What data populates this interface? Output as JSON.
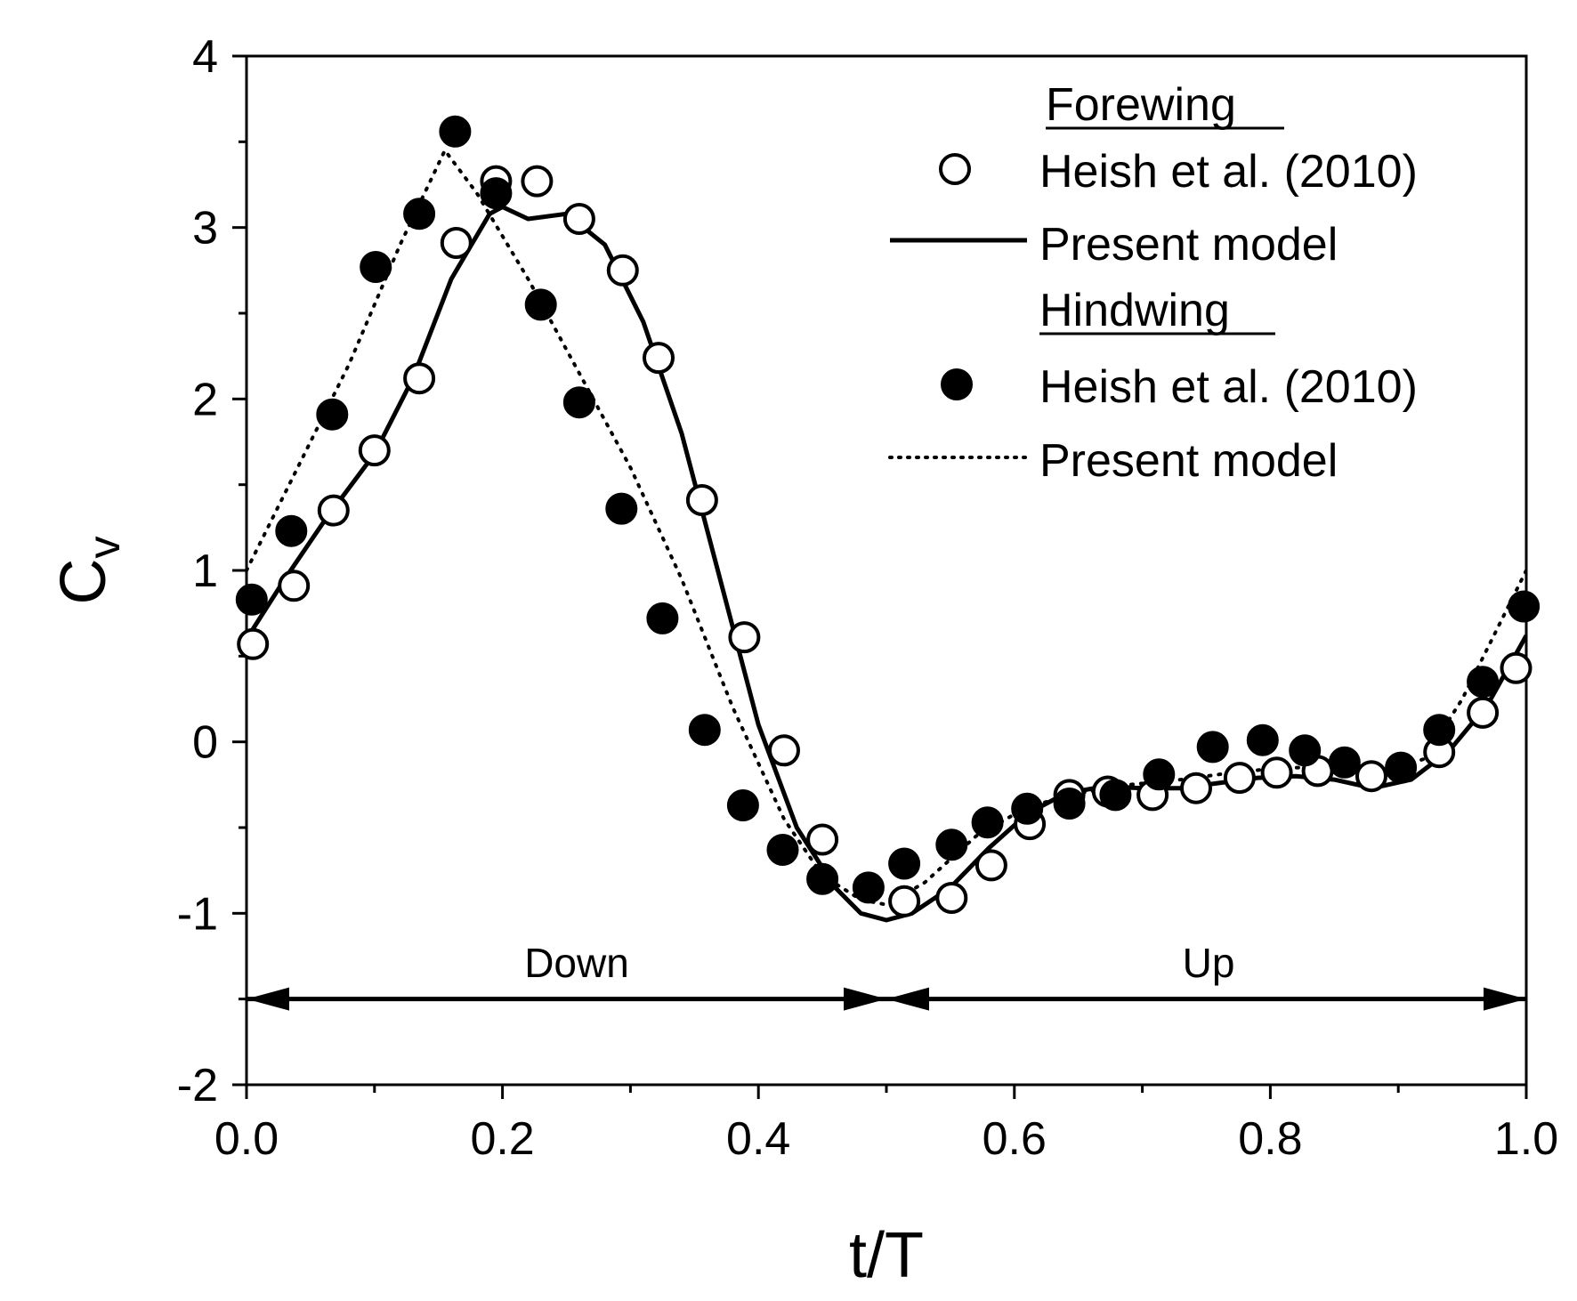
{
  "chart_data": {
    "type": "line",
    "title": "",
    "xlabel": "t/T",
    "ylabel": "C",
    "ylabel_subscript": "v",
    "xlim": [
      0.0,
      1.0
    ],
    "ylim": [
      -2,
      4
    ],
    "x_ticks": [
      "0.0",
      "0.2",
      "0.4",
      "0.6",
      "0.8",
      "1.0"
    ],
    "x_tick_values": [
      0.0,
      0.2,
      0.4,
      0.6,
      0.8,
      1.0
    ],
    "y_ticks": [
      "-2",
      "-1",
      "0",
      "1",
      "2",
      "3",
      "4"
    ],
    "y_tick_values": [
      -2,
      -1,
      0,
      1,
      2,
      3,
      4
    ],
    "grid": false,
    "legend_position": "top-right",
    "legend": {
      "forewing_title": "Forewing",
      "hindwing_title": "Hindwing",
      "fore_exp": "Heish et al. (2010)",
      "fore_model": "Present model",
      "hind_exp": "Heish et al. (2010)",
      "hind_model": "Present model"
    },
    "annotations": {
      "down_label": "Down",
      "up_label": "Up",
      "arrow_y": -1.5,
      "down_range": [
        0.0,
        0.5
      ],
      "up_range": [
        0.5,
        1.0
      ]
    },
    "series": [
      {
        "name": "Forewing Heish et al. (2010)",
        "style": "open-circle",
        "x": [
          0.005,
          0.037,
          0.068,
          0.1,
          0.135,
          0.164,
          0.195,
          0.227,
          0.26,
          0.294,
          0.322,
          0.356,
          0.389,
          0.42,
          0.45,
          0.514,
          0.551,
          0.582,
          0.612,
          0.643,
          0.673,
          0.708,
          0.742,
          0.776,
          0.805,
          0.837,
          0.879,
          0.932,
          0.966,
          0.992
        ],
        "y": [
          0.57,
          0.91,
          1.35,
          1.7,
          2.12,
          2.91,
          3.27,
          3.27,
          3.05,
          2.75,
          2.24,
          1.41,
          0.61,
          -0.05,
          -0.57,
          -0.93,
          -0.91,
          -0.72,
          -0.48,
          -0.31,
          -0.29,
          -0.31,
          -0.27,
          -0.21,
          -0.18,
          -0.17,
          -0.2,
          -0.06,
          0.17,
          0.43
        ]
      },
      {
        "name": "Forewing Present model",
        "style": "solid-line",
        "x": [
          0.0,
          0.03,
          0.06,
          0.1,
          0.13,
          0.16,
          0.19,
          0.2,
          0.22,
          0.25,
          0.28,
          0.31,
          0.34,
          0.37,
          0.4,
          0.43,
          0.46,
          0.48,
          0.5,
          0.52,
          0.55,
          0.58,
          0.61,
          0.64,
          0.67,
          0.7,
          0.73,
          0.76,
          0.79,
          0.82,
          0.85,
          0.88,
          0.91,
          0.94,
          0.97,
          1.0
        ],
        "y": [
          0.6,
          0.95,
          1.28,
          1.68,
          2.12,
          2.7,
          3.08,
          3.12,
          3.05,
          3.08,
          2.9,
          2.45,
          1.8,
          0.95,
          0.1,
          -0.5,
          -0.85,
          -1.0,
          -1.04,
          -1.0,
          -0.85,
          -0.62,
          -0.42,
          -0.3,
          -0.26,
          -0.27,
          -0.27,
          -0.24,
          -0.21,
          -0.2,
          -0.22,
          -0.27,
          -0.22,
          -0.05,
          0.22,
          0.62
        ]
      },
      {
        "name": "Hindwing Heish et al. (2010)",
        "style": "filled-circle",
        "x": [
          0.004,
          0.035,
          0.067,
          0.101,
          0.135,
          0.163,
          0.195,
          0.23,
          0.26,
          0.293,
          0.325,
          0.358,
          0.388,
          0.419,
          0.45,
          0.486,
          0.514,
          0.551,
          0.579,
          0.61,
          0.643,
          0.679,
          0.713,
          0.755,
          0.794,
          0.827,
          0.858,
          0.902,
          0.932,
          0.966,
          0.998
        ],
        "y": [
          0.83,
          1.23,
          1.91,
          2.77,
          3.08,
          3.56,
          3.2,
          2.55,
          1.98,
          1.36,
          0.72,
          0.07,
          -0.37,
          -0.63,
          -0.8,
          -0.85,
          -0.71,
          -0.6,
          -0.47,
          -0.39,
          -0.36,
          -0.31,
          -0.19,
          -0.03,
          0.01,
          -0.05,
          -0.12,
          -0.15,
          0.07,
          0.35,
          0.79
        ]
      },
      {
        "name": "Hindwing Present model",
        "style": "dotted-line",
        "x": [
          0.0,
          0.04,
          0.08,
          0.12,
          0.155,
          0.18,
          0.22,
          0.26,
          0.3,
          0.34,
          0.38,
          0.42,
          0.45,
          0.48,
          0.5,
          0.53,
          0.57,
          0.61,
          0.65,
          0.69,
          0.73,
          0.77,
          0.81,
          0.85,
          0.89,
          0.92,
          0.95,
          0.98,
          1.0
        ],
        "y": [
          1.0,
          1.6,
          2.2,
          2.9,
          3.45,
          3.2,
          2.7,
          2.15,
          1.6,
          0.95,
          0.2,
          -0.45,
          -0.78,
          -0.92,
          -0.95,
          -0.82,
          -0.55,
          -0.38,
          -0.3,
          -0.25,
          -0.22,
          -0.18,
          -0.15,
          -0.15,
          -0.18,
          -0.1,
          0.25,
          0.7,
          1.0
        ]
      }
    ]
  }
}
